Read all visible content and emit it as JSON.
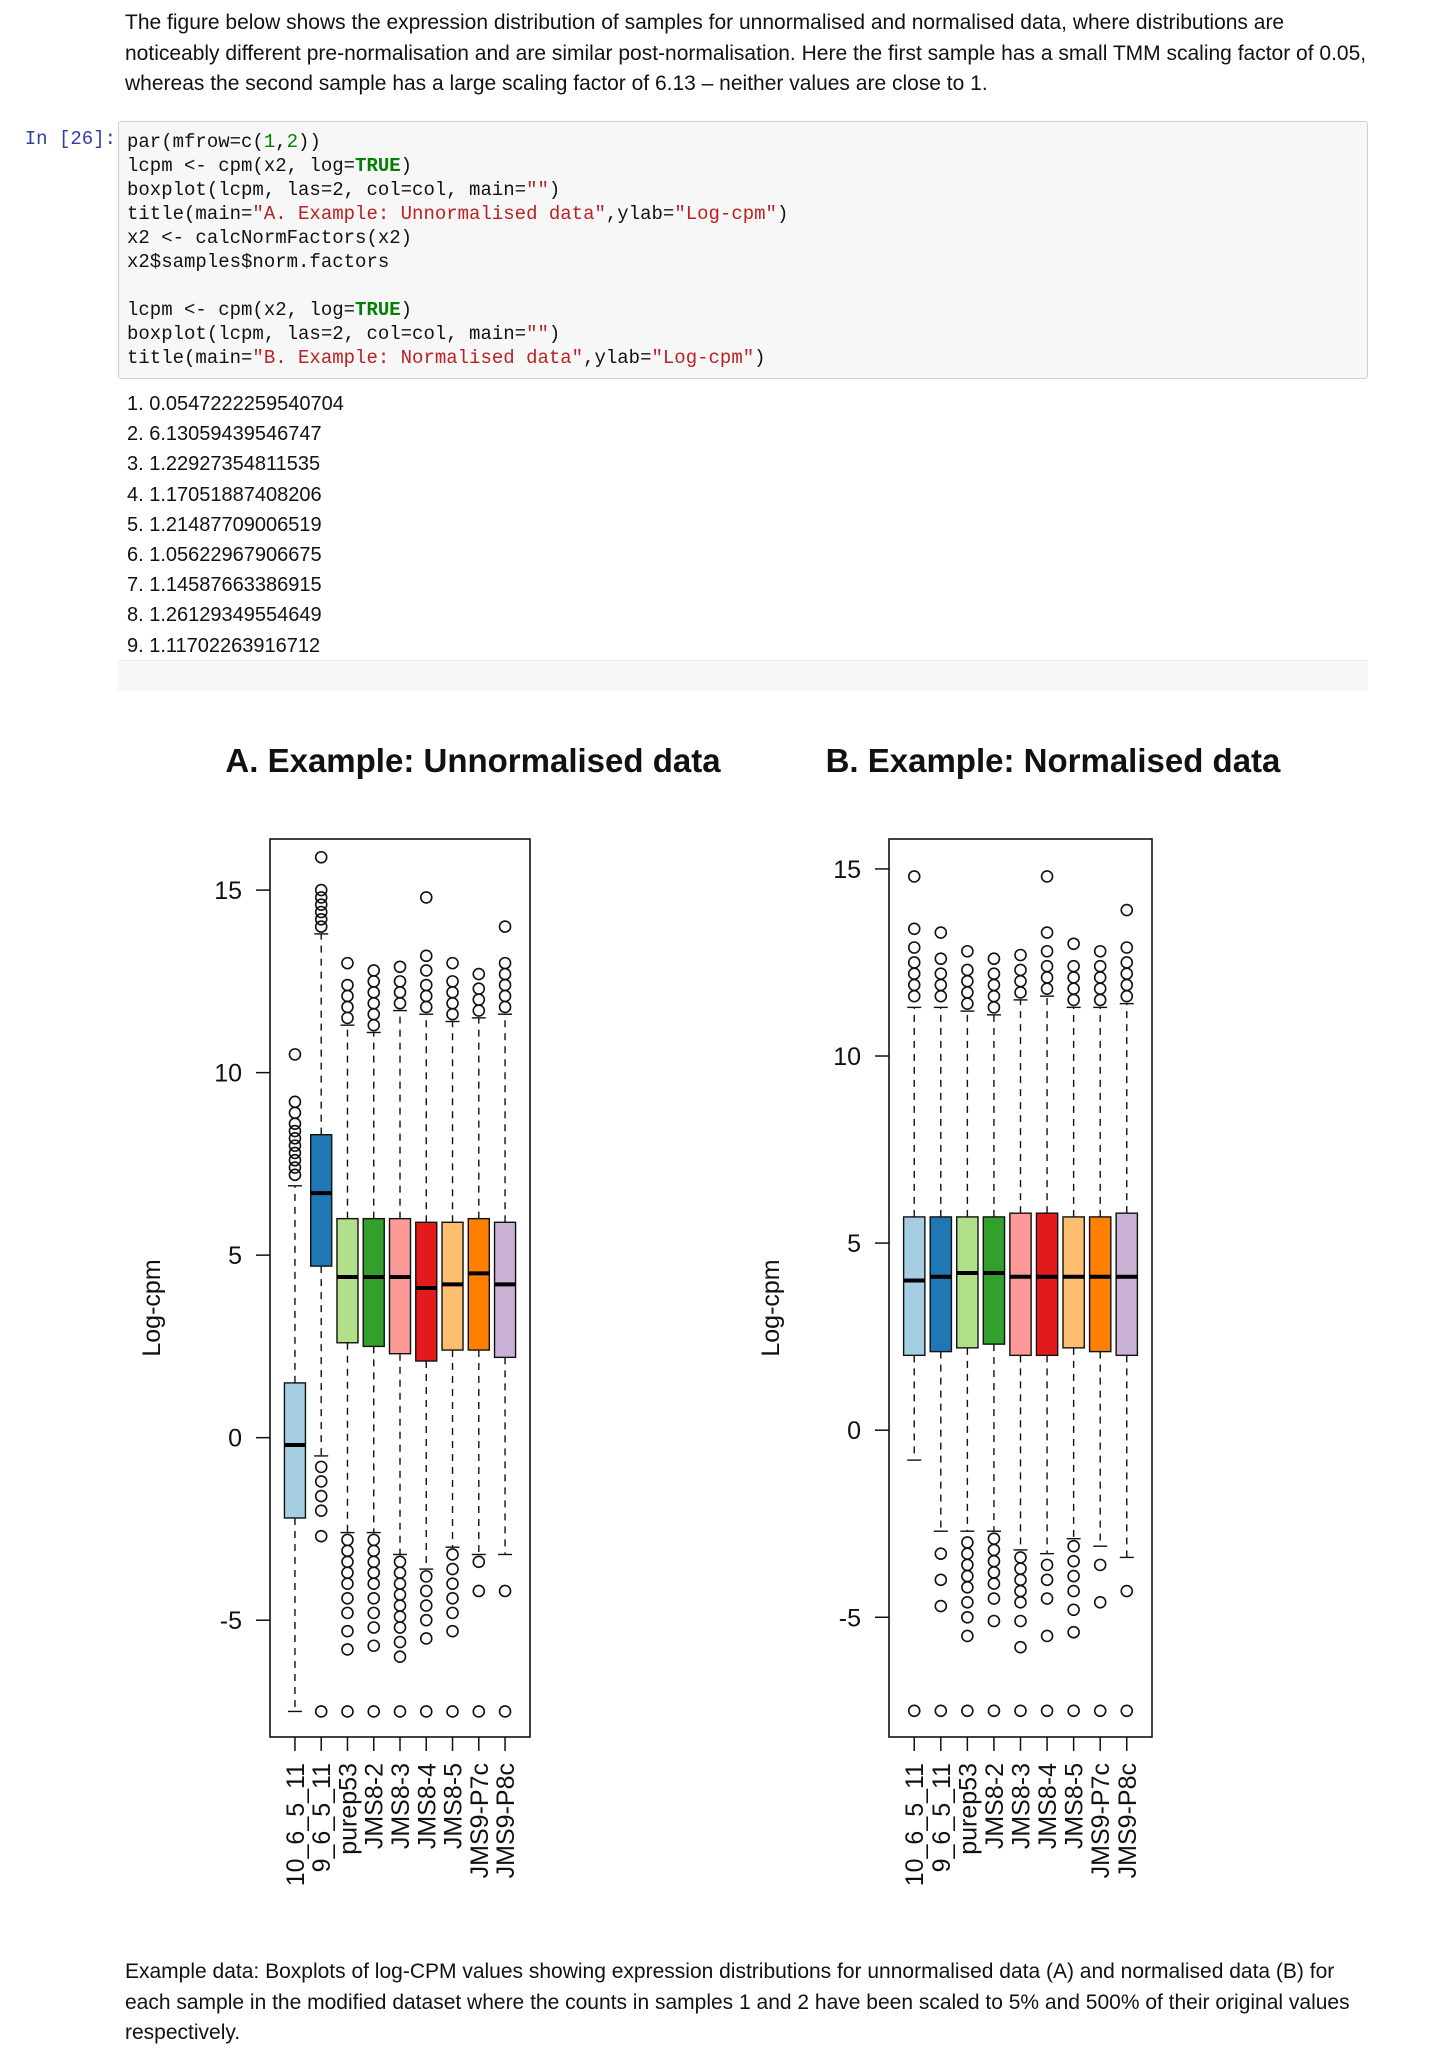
{
  "intro_text": "The figure below shows the expression distribution of samples for unnormalised and normalised data, where distributions are noticeably different pre-normalisation and are similar post-normalisation. Here the first sample has a small TMM scaling factor of 0.05, whereas the second sample has a large scaling factor of 6.13 – neither values are close to 1.",
  "cell": {
    "prompt": "In [26]:",
    "code_lines": [
      [
        {
          "t": "par(mfrow=c(",
          "c": ""
        },
        {
          "t": "1",
          "c": "kw0"
        },
        {
          "t": ",",
          "c": ""
        },
        {
          "t": "2",
          "c": "kw0"
        },
        {
          "t": "))",
          "c": ""
        }
      ],
      [
        {
          "t": "lcpm <- cpm(x2, log=",
          "c": ""
        },
        {
          "t": "TRUE",
          "c": "kw"
        },
        {
          "t": ")",
          "c": ""
        }
      ],
      [
        {
          "t": "boxplot(lcpm, las=2, col=col, main=",
          "c": ""
        },
        {
          "t": "\"\"",
          "c": "str"
        },
        {
          "t": ")",
          "c": ""
        }
      ],
      [
        {
          "t": "title(main=",
          "c": ""
        },
        {
          "t": "\"A. Example: Unnormalised data\"",
          "c": "str"
        },
        {
          "t": ",ylab=",
          "c": ""
        },
        {
          "t": "\"Log-cpm\"",
          "c": "str"
        },
        {
          "t": ")",
          "c": ""
        }
      ],
      [
        {
          "t": "x2 <- calcNormFactors(x2)",
          "c": ""
        }
      ],
      [
        {
          "t": "x2$samples$norm.factors",
          "c": ""
        }
      ],
      [],
      [
        {
          "t": "lcpm <- cpm(x2, log=",
          "c": ""
        },
        {
          "t": "TRUE",
          "c": "kw"
        },
        {
          "t": ")",
          "c": ""
        }
      ],
      [
        {
          "t": "boxplot(lcpm, las=2, col=col, main=",
          "c": ""
        },
        {
          "t": "\"\"",
          "c": "str"
        },
        {
          "t": ")",
          "c": ""
        }
      ],
      [
        {
          "t": "title(main=",
          "c": ""
        },
        {
          "t": "\"B. Example: Normalised data\"",
          "c": "str"
        },
        {
          "t": ",ylab=",
          "c": ""
        },
        {
          "t": "\"Log-cpm\"",
          "c": "str"
        },
        {
          "t": ")",
          "c": ""
        }
      ]
    ]
  },
  "output_list": [
    "1. 0.0547222259540704",
    "2. 6.13059439546747",
    "3. 1.22927354811535",
    "4. 1.17051887408206",
    "5. 1.21487709006519",
    "6. 1.05622967906675",
    "7. 1.14587663386915",
    "8. 1.26129349554649",
    "9. 1.11702263916712"
  ],
  "caption_text": "Example data: Boxplots of log-CPM values showing expression distributions for unnormalised data (A) and normalised data (B) for each sample in the modified dataset where the counts in samples 1 and 2 have been scaled to 5% and 500% of their original values respectively.",
  "colors": {
    "box_fill": [
      "#a6cee3",
      "#1f78b4",
      "#b2df8a",
      "#33a02c",
      "#fb9a99",
      "#e31a1c",
      "#fdbf6f",
      "#ff7f00",
      "#cab2d6"
    ]
  },
  "chart_data": [
    {
      "type": "boxplot",
      "title": "A. Example: Unnormalised data",
      "ylabel": "Log-cpm",
      "ylim": [
        -8.2,
        16.4
      ],
      "yticks": [
        -5,
        0,
        5,
        10,
        15
      ],
      "categories": [
        "10_6_5_11",
        "9_6_5_11",
        "purep53",
        "JMS8-2",
        "JMS8-3",
        "JMS8-4",
        "JMS8-5",
        "JMS9-P7c",
        "JMS9-P8c"
      ],
      "boxes": [
        {
          "whisker_low": -7.5,
          "q1": -2.2,
          "median": -0.2,
          "q3": 1.5,
          "whisker_high": 6.9,
          "outliers_high": [
            7.2,
            7.4,
            7.6,
            7.8,
            8.0,
            8.2,
            8.4,
            8.6,
            8.9,
            9.2,
            10.5
          ],
          "outliers_low": []
        },
        {
          "whisker_low": -0.5,
          "q1": 4.7,
          "median": 6.7,
          "q3": 8.3,
          "whisker_high": 13.8,
          "outliers_high": [
            14.0,
            14.2,
            14.4,
            14.6,
            14.8,
            15.0,
            15.9
          ],
          "outliers_low": [
            -0.8,
            -1.2,
            -1.6,
            -2.0,
            -2.7,
            -7.5
          ]
        },
        {
          "whisker_low": -2.6,
          "q1": 2.6,
          "median": 4.4,
          "q3": 6.0,
          "whisker_high": 11.3,
          "outliers_high": [
            11.5,
            11.8,
            12.1,
            12.4,
            13.0
          ],
          "outliers_low": [
            -2.8,
            -3.1,
            -3.4,
            -3.7,
            -4.0,
            -4.4,
            -4.8,
            -5.3,
            -5.8,
            -7.5
          ]
        },
        {
          "whisker_low": -2.6,
          "q1": 2.5,
          "median": 4.4,
          "q3": 6.0,
          "whisker_high": 11.1,
          "outliers_high": [
            11.3,
            11.6,
            11.9,
            12.2,
            12.5,
            12.8
          ],
          "outliers_low": [
            -2.8,
            -3.1,
            -3.4,
            -3.7,
            -4.0,
            -4.4,
            -4.8,
            -5.2,
            -5.7,
            -7.5
          ]
        },
        {
          "whisker_low": -3.2,
          "q1": 2.3,
          "median": 4.4,
          "q3": 6.0,
          "whisker_high": 11.7,
          "outliers_high": [
            11.9,
            12.2,
            12.5,
            12.9
          ],
          "outliers_low": [
            -3.4,
            -3.7,
            -4.0,
            -4.3,
            -4.6,
            -4.9,
            -5.2,
            -5.6,
            -6.0,
            -7.5
          ]
        },
        {
          "whisker_low": -3.6,
          "q1": 2.1,
          "median": 4.1,
          "q3": 5.9,
          "whisker_high": 11.6,
          "outliers_high": [
            11.8,
            12.1,
            12.4,
            12.8,
            13.2,
            14.8
          ],
          "outliers_low": [
            -3.8,
            -4.2,
            -4.6,
            -5.0,
            -5.5,
            -7.5
          ]
        },
        {
          "whisker_low": -3.0,
          "q1": 2.4,
          "median": 4.2,
          "q3": 5.9,
          "whisker_high": 11.4,
          "outliers_high": [
            11.6,
            11.9,
            12.2,
            12.5,
            13.0
          ],
          "outliers_low": [
            -3.2,
            -3.6,
            -4.0,
            -4.4,
            -4.8,
            -5.3,
            -7.5
          ]
        },
        {
          "whisker_low": -3.2,
          "q1": 2.4,
          "median": 4.5,
          "q3": 6.0,
          "whisker_high": 11.5,
          "outliers_high": [
            11.7,
            12.0,
            12.3,
            12.7
          ],
          "outliers_low": [
            -3.4,
            -4.2,
            -7.5
          ]
        },
        {
          "whisker_low": -3.2,
          "q1": 2.2,
          "median": 4.2,
          "q3": 5.9,
          "whisker_high": 11.6,
          "outliers_high": [
            11.8,
            12.1,
            12.4,
            12.7,
            13.0,
            14.0
          ],
          "outliers_low": [
            -4.2,
            -7.5
          ]
        }
      ]
    },
    {
      "type": "boxplot",
      "title": "B. Example: Normalised data",
      "ylabel": "Log-cpm",
      "ylim": [
        -8.2,
        15.8
      ],
      "yticks": [
        -5,
        0,
        5,
        10,
        15
      ],
      "categories": [
        "10_6_5_11",
        "9_6_5_11",
        "purep53",
        "JMS8-2",
        "JMS8-3",
        "JMS8-4",
        "JMS8-5",
        "JMS9-P7c",
        "JMS9-P8c"
      ],
      "boxes": [
        {
          "whisker_low": -0.8,
          "q1": 2.0,
          "median": 4.0,
          "q3": 5.7,
          "whisker_high": 11.3,
          "outliers_high": [
            11.6,
            11.9,
            12.2,
            12.5,
            12.9,
            13.4,
            14.8
          ],
          "outliers_low": [
            -7.5
          ]
        },
        {
          "whisker_low": -2.7,
          "q1": 2.1,
          "median": 4.1,
          "q3": 5.7,
          "whisker_high": 11.3,
          "outliers_high": [
            11.6,
            11.9,
            12.2,
            12.6,
            13.3
          ],
          "outliers_low": [
            -3.3,
            -4.0,
            -4.7,
            -7.5
          ]
        },
        {
          "whisker_low": -2.7,
          "q1": 2.2,
          "median": 4.2,
          "q3": 5.7,
          "whisker_high": 11.2,
          "outliers_high": [
            11.4,
            11.7,
            12.0,
            12.3,
            12.8
          ],
          "outliers_low": [
            -3.0,
            -3.3,
            -3.6,
            -3.9,
            -4.2,
            -4.6,
            -5.0,
            -5.5,
            -7.5
          ]
        },
        {
          "whisker_low": -2.7,
          "q1": 2.3,
          "median": 4.2,
          "q3": 5.7,
          "whisker_high": 11.1,
          "outliers_high": [
            11.3,
            11.6,
            11.9,
            12.2,
            12.6
          ],
          "outliers_low": [
            -2.9,
            -3.2,
            -3.5,
            -3.8,
            -4.1,
            -4.5,
            -5.1,
            -7.5
          ]
        },
        {
          "whisker_low": -3.2,
          "q1": 2.0,
          "median": 4.1,
          "q3": 5.8,
          "whisker_high": 11.5,
          "outliers_high": [
            11.7,
            12.0,
            12.3,
            12.7
          ],
          "outliers_low": [
            -3.4,
            -3.7,
            -4.0,
            -4.3,
            -4.6,
            -5.1,
            -5.8,
            -7.5
          ]
        },
        {
          "whisker_low": -3.3,
          "q1": 2.0,
          "median": 4.1,
          "q3": 5.8,
          "whisker_high": 11.6,
          "outliers_high": [
            11.8,
            12.1,
            12.4,
            12.8,
            13.3,
            14.8
          ],
          "outliers_low": [
            -3.6,
            -4.0,
            -4.5,
            -5.5,
            -7.5
          ]
        },
        {
          "whisker_low": -2.9,
          "q1": 2.2,
          "median": 4.1,
          "q3": 5.7,
          "whisker_high": 11.3,
          "outliers_high": [
            11.5,
            11.8,
            12.1,
            12.4,
            13.0
          ],
          "outliers_low": [
            -3.1,
            -3.5,
            -3.9,
            -4.3,
            -4.8,
            -5.4,
            -7.5
          ]
        },
        {
          "whisker_low": -3.1,
          "q1": 2.1,
          "median": 4.1,
          "q3": 5.7,
          "whisker_high": 11.3,
          "outliers_high": [
            11.5,
            11.8,
            12.1,
            12.4,
            12.8
          ],
          "outliers_low": [
            -3.6,
            -4.6,
            -7.5
          ]
        },
        {
          "whisker_low": -3.4,
          "q1": 2.0,
          "median": 4.1,
          "q3": 5.8,
          "whisker_high": 11.4,
          "outliers_high": [
            11.6,
            11.9,
            12.2,
            12.5,
            12.9,
            13.9
          ],
          "outliers_low": [
            -4.3,
            -7.5
          ]
        }
      ]
    }
  ]
}
